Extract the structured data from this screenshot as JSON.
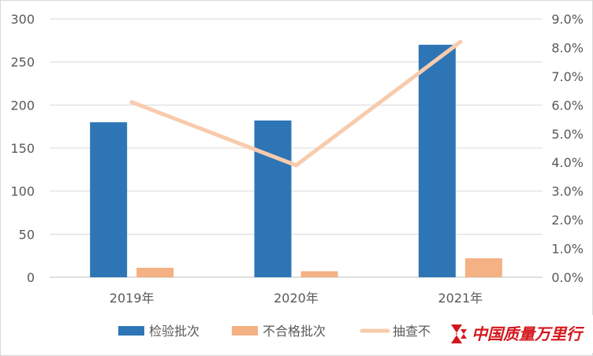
{
  "chart_data": {
    "type": "bar",
    "categories": [
      "2019年",
      "2020年",
      "2021年"
    ],
    "series": [
      {
        "name": "检验批次",
        "kind": "bar",
        "axis": "left",
        "color": "#2e75b6",
        "values": [
          180,
          182,
          270
        ]
      },
      {
        "name": "不合格批次",
        "kind": "bar",
        "axis": "left",
        "color": "#f4b183",
        "values": [
          11,
          7,
          22
        ]
      },
      {
        "name": "抽查不合格率",
        "kind": "line",
        "axis": "right",
        "color": "#f8cbad",
        "values": [
          6.1,
          3.9,
          8.2
        ]
      }
    ],
    "y_left": {
      "min": 0,
      "max": 300,
      "step": 50,
      "ticks": [
        "0",
        "50",
        "100",
        "150",
        "200",
        "250",
        "300"
      ]
    },
    "y_right": {
      "min": 0,
      "max": 9,
      "step": 1,
      "ticks": [
        "0.0%",
        "1.0%",
        "2.0%",
        "3.0%",
        "4.0%",
        "5.0%",
        "6.0%",
        "7.0%",
        "8.0%",
        "9.0%"
      ]
    },
    "grid": true,
    "legend": {
      "position": "bottom",
      "items": [
        {
          "label": "检验批次",
          "color": "#2e75b6",
          "shape": "rect"
        },
        {
          "label": "不合格批次",
          "color": "#f4b183",
          "shape": "rect"
        },
        {
          "label": "抽查不",
          "color": "#f8cbad",
          "shape": "line"
        }
      ]
    }
  },
  "watermark": {
    "text": "中国质量万里行",
    "color": "#d4161c"
  }
}
